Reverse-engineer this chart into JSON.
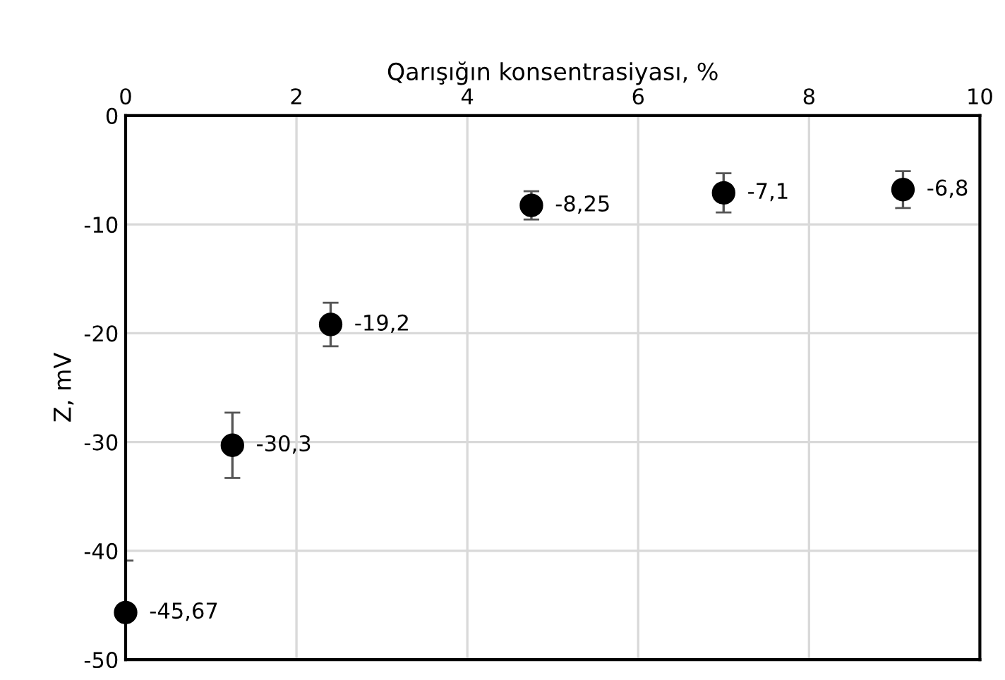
{
  "chart_data": {
    "type": "scatter",
    "xlabel": "Qarışığın konsentrasiyası, %",
    "ylabel": "Z, mV",
    "x": [
      0,
      1.25,
      2.4,
      4.75,
      7,
      9.1
    ],
    "values": [
      -45.67,
      -30.3,
      -19.2,
      -8.25,
      -7.1,
      -6.8
    ],
    "value_labels": [
      "-45,67",
      "-30,3",
      "-19,2",
      "-8,25",
      "-7,1",
      "-6,8"
    ],
    "errors": [
      [
        -50,
        -40.9
      ],
      3,
      2,
      1.3,
      1.8,
      1.7
    ],
    "color": "#000000",
    "marker": "circle",
    "xlim": [
      0,
      10
    ],
    "xticks": [
      0,
      2,
      4,
      6,
      8,
      10
    ],
    "ylim": [
      -50,
      0
    ],
    "yticks": [
      -50,
      -40,
      -30,
      -20,
      -10,
      0
    ],
    "grid": true
  }
}
